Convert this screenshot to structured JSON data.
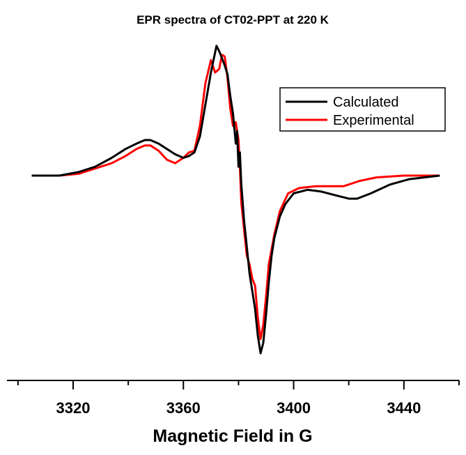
{
  "chart_data": {
    "type": "line",
    "title": "EPR spectra of CT02-PPT at 220 K",
    "xlabel": "Magnetic Field in G",
    "ylabel": "",
    "xlim": [
      3296,
      3460
    ],
    "ylim": [
      -1.1,
      0.85
    ],
    "xticks": [
      3320,
      3360,
      3400,
      3440
    ],
    "xticks_minor": [
      3300,
      3340,
      3380,
      3420,
      3460
    ],
    "grid": false,
    "legend_position": "top-right",
    "series": [
      {
        "name": "Calculated",
        "color": "#000000",
        "x": [
          3305,
          3315,
          3322,
          3328,
          3334,
          3339,
          3343,
          3346,
          3348,
          3351,
          3354,
          3357,
          3360,
          3362,
          3364,
          3366,
          3368,
          3370,
          3372,
          3373,
          3374,
          3375,
          3376,
          3377,
          3378,
          3379,
          3379.5,
          3380,
          3380.5,
          3381,
          3381.5,
          3382,
          3383,
          3384,
          3385,
          3386,
          3387,
          3388,
          3389,
          3390,
          3391,
          3392,
          3393,
          3395,
          3397,
          3400,
          3405,
          3410,
          3415,
          3420,
          3423,
          3428,
          3435,
          3442,
          3453
        ],
        "y": [
          0.0,
          0.0,
          0.02,
          0.05,
          0.1,
          0.15,
          0.18,
          0.2,
          0.2,
          0.18,
          0.15,
          0.12,
          0.1,
          0.11,
          0.13,
          0.22,
          0.4,
          0.58,
          0.73,
          0.7,
          0.66,
          0.62,
          0.57,
          0.45,
          0.35,
          0.18,
          0.25,
          0.05,
          0.13,
          -0.05,
          -0.15,
          -0.25,
          -0.4,
          -0.55,
          -0.65,
          -0.75,
          -0.9,
          -1.0,
          -0.94,
          -0.78,
          -0.6,
          -0.45,
          -0.35,
          -0.23,
          -0.16,
          -0.1,
          -0.08,
          -0.09,
          -0.11,
          -0.13,
          -0.13,
          -0.1,
          -0.05,
          -0.02,
          0.0
        ]
      },
      {
        "name": "Experimental",
        "color": "#ff0000",
        "x": [
          3305,
          3315,
          3322,
          3328,
          3334,
          3339,
          3343,
          3346,
          3348,
          3351,
          3354,
          3357,
          3360,
          3362,
          3364,
          3366,
          3368,
          3370,
          3371.5,
          3373,
          3374,
          3375,
          3376,
          3377,
          3378,
          3379,
          3380,
          3380.5,
          3381,
          3382,
          3383,
          3384,
          3385,
          3386,
          3387,
          3388,
          3389,
          3390,
          3391,
          3393,
          3395,
          3398,
          3402,
          3408,
          3414,
          3418,
          3420,
          3424,
          3430,
          3440,
          3453
        ],
        "y": [
          0.0,
          0.0,
          0.01,
          0.04,
          0.07,
          0.11,
          0.15,
          0.17,
          0.17,
          0.14,
          0.09,
          0.07,
          0.1,
          0.13,
          0.14,
          0.28,
          0.52,
          0.65,
          0.58,
          0.6,
          0.68,
          0.67,
          0.55,
          0.38,
          0.28,
          0.3,
          0.2,
          0.05,
          -0.15,
          -0.3,
          -0.45,
          -0.5,
          -0.58,
          -0.62,
          -0.8,
          -0.92,
          -0.84,
          -0.68,
          -0.5,
          -0.33,
          -0.2,
          -0.1,
          -0.07,
          -0.06,
          -0.06,
          -0.06,
          -0.05,
          -0.03,
          -0.01,
          0.0,
          0.0
        ]
      }
    ]
  }
}
